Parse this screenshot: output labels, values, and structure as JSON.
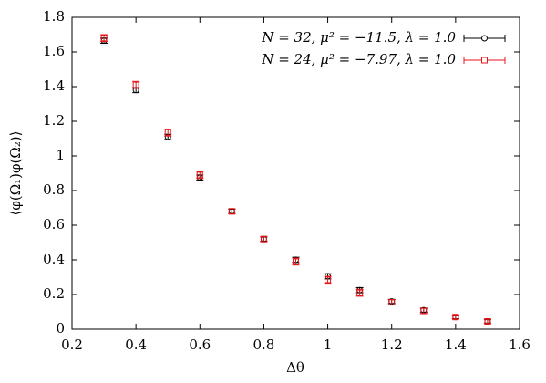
{
  "chart_data": {
    "type": "scatter",
    "xlabel": "Δθ",
    "ylabel": "⟨φ(Ω₁)φ(Ω₂)⟩",
    "xlim": [
      0.2,
      1.6
    ],
    "ylim": [
      0,
      1.8
    ],
    "xticks": [
      0.2,
      0.4,
      0.6,
      0.8,
      1,
      1.2,
      1.4,
      1.6
    ],
    "yticks": [
      0,
      0.2,
      0.4,
      0.6,
      0.8,
      1,
      1.2,
      1.4,
      1.6,
      1.8
    ],
    "legend": "upper right",
    "series": [
      {
        "name": "N = 32, μ² = −11.5, λ = 1.0",
        "color": "#000000",
        "marker": "circle",
        "x": [
          0.3,
          0.4,
          0.5,
          0.6,
          0.7,
          0.8,
          0.9,
          1.0,
          1.1,
          1.2,
          1.3,
          1.4,
          1.5
        ],
        "values": [
          1.665,
          1.38,
          1.11,
          0.875,
          0.68,
          0.52,
          0.4,
          0.305,
          0.225,
          0.16,
          0.11,
          0.07,
          0.045
        ],
        "errors": [
          0.015,
          0.015,
          0.015,
          0.015,
          0.012,
          0.012,
          0.015,
          0.015,
          0.015,
          0.012,
          0.012,
          0.01,
          0.01
        ]
      },
      {
        "name": "N = 24, μ² = −7.97, λ = 1.0",
        "color": "#e8161b",
        "marker": "square",
        "x": [
          0.3,
          0.4,
          0.5,
          0.6,
          0.7,
          0.8,
          0.9,
          1.0,
          1.1,
          1.2,
          1.3,
          1.4,
          1.5
        ],
        "values": [
          1.68,
          1.41,
          1.135,
          0.89,
          0.68,
          0.52,
          0.39,
          0.285,
          0.21,
          0.155,
          0.105,
          0.07,
          0.045
        ],
        "errors": [
          0.02,
          0.02,
          0.02,
          0.02,
          0.015,
          0.015,
          0.02,
          0.02,
          0.02,
          0.015,
          0.015,
          0.012,
          0.012
        ]
      }
    ]
  }
}
